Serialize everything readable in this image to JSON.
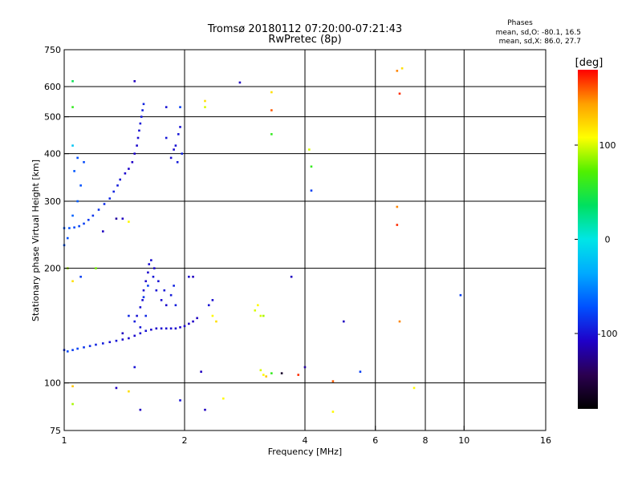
{
  "chart_data": {
    "type": "scatter",
    "title": "Tromsø 20180112 07:20:00-07:21:43",
    "subtitle": "RwPretec (8p)",
    "stats": {
      "heading": "Phases",
      "line_o": "mean, sd,O: -80.1, 16.5",
      "line_x": "mean, sd,X:  86.0, 27.7"
    },
    "xlabel": "Frequency [MHz]",
    "ylabel": "Stationary phase Virtual Height [km]",
    "x_scale": "log",
    "y_scale": "log",
    "xlim": [
      1,
      16
    ],
    "ylim": [
      75,
      750
    ],
    "x_ticks": [
      1,
      2,
      4,
      6,
      8,
      10,
      16
    ],
    "y_ticks": [
      75,
      100,
      200,
      300,
      400,
      500,
      600,
      750
    ],
    "x_gridlines": [
      2,
      4,
      6,
      8,
      10
    ],
    "y_gridlines": [
      100,
      200,
      300,
      400,
      500,
      600
    ],
    "colorbar": {
      "label": "[deg]",
      "range": [
        -180,
        180
      ],
      "ticks": [
        100,
        0,
        -100
      ],
      "colormap": [
        "#000000",
        "#2b0050",
        "#1f00c8",
        "#0050ff",
        "#00aaff",
        "#00e6e6",
        "#00e060",
        "#50f000",
        "#ffff00",
        "#ffa000",
        "#ff0000"
      ]
    },
    "series": [
      {
        "trace": "lower",
        "points": [
          [
            1.0,
            122,
            -90
          ],
          [
            1.02,
            121,
            -75
          ],
          [
            1.05,
            122,
            -82
          ],
          [
            1.08,
            123,
            -78
          ],
          [
            1.12,
            124,
            -85
          ],
          [
            1.16,
            125,
            -88
          ],
          [
            1.2,
            126,
            -92
          ],
          [
            1.25,
            127,
            -95
          ],
          [
            1.3,
            128,
            -100
          ],
          [
            1.35,
            129,
            -98
          ],
          [
            1.4,
            130,
            -103
          ],
          [
            1.45,
            131,
            -105
          ],
          [
            1.5,
            133,
            -104
          ],
          [
            1.55,
            135,
            -102
          ],
          [
            1.6,
            137,
            -100
          ],
          [
            1.65,
            138,
            -104
          ],
          [
            1.7,
            139,
            -106
          ],
          [
            1.75,
            139,
            -104
          ],
          [
            1.8,
            139,
            -102
          ],
          [
            1.85,
            139,
            -103
          ],
          [
            1.9,
            139,
            -104
          ],
          [
            1.95,
            140,
            -104
          ],
          [
            2.0,
            141,
            -106
          ],
          [
            2.05,
            143,
            -106
          ],
          [
            2.1,
            145,
            -108
          ],
          [
            2.15,
            148,
            -110
          ],
          [
            1.52,
            150,
            -100
          ],
          [
            1.55,
            158,
            -100
          ],
          [
            1.57,
            165,
            -102
          ],
          [
            1.58,
            175,
            -104
          ],
          [
            1.6,
            185,
            -106
          ],
          [
            1.62,
            195,
            -104
          ],
          [
            1.63,
            205,
            -102
          ],
          [
            1.67,
            190,
            -98
          ],
          [
            1.7,
            175,
            -100
          ],
          [
            1.75,
            165,
            -102
          ],
          [
            1.8,
            160,
            -104
          ],
          [
            1.5,
            145,
            -95
          ],
          [
            1.45,
            150,
            -90
          ],
          [
            1.58,
            168,
            -85
          ],
          [
            1.62,
            180,
            -80
          ],
          [
            1.65,
            210,
            -102
          ],
          [
            1.68,
            200,
            -104
          ],
          [
            1.72,
            185,
            -100
          ],
          [
            1.78,
            175,
            -98
          ],
          [
            1.85,
            170,
            -96
          ],
          [
            1.88,
            180,
            -92
          ],
          [
            1.9,
            160,
            -94
          ],
          [
            1.55,
            140,
            -98
          ],
          [
            1.6,
            150,
            -90
          ],
          [
            2.35,
            165,
            -102
          ],
          [
            2.3,
            160,
            -100
          ],
          [
            2.05,
            190,
            -105
          ],
          [
            1.5,
            110,
            -100
          ],
          [
            1.4,
            135,
            -110
          ]
        ]
      },
      {
        "trace": "upper",
        "points": [
          [
            1.0,
            255,
            -70
          ],
          [
            1.03,
            255,
            -72
          ],
          [
            1.06,
            256,
            -75
          ],
          [
            1.09,
            258,
            -78
          ],
          [
            1.12,
            262,
            -80
          ],
          [
            1.15,
            268,
            -82
          ],
          [
            1.18,
            275,
            -84
          ],
          [
            1.22,
            285,
            -86
          ],
          [
            1.26,
            295,
            -88
          ],
          [
            1.3,
            305,
            -90
          ],
          [
            1.33,
            318,
            -92
          ],
          [
            1.36,
            330,
            -95
          ],
          [
            1.38,
            342,
            -100
          ],
          [
            1.42,
            355,
            -104
          ],
          [
            1.45,
            365,
            -106
          ],
          [
            1.48,
            380,
            -108
          ],
          [
            1.5,
            400,
            -106
          ],
          [
            1.52,
            420,
            -104
          ],
          [
            1.53,
            440,
            -102
          ],
          [
            1.54,
            460,
            -100
          ],
          [
            1.55,
            480,
            -98
          ],
          [
            1.56,
            500,
            -96
          ],
          [
            1.57,
            520,
            -94
          ],
          [
            1.58,
            540,
            -92
          ],
          [
            1.0,
            230,
            -70
          ],
          [
            1.02,
            240,
            -72
          ],
          [
            1.05,
            275,
            -65
          ],
          [
            1.08,
            300,
            -68
          ],
          [
            1.1,
            330,
            -72
          ],
          [
            1.06,
            360,
            -70
          ],
          [
            1.08,
            390,
            -74
          ],
          [
            1.12,
            380,
            -75
          ],
          [
            1.05,
            420,
            -20
          ],
          [
            1.85,
            390,
            -102
          ],
          [
            1.88,
            410,
            -104
          ],
          [
            1.9,
            420,
            -100
          ],
          [
            1.93,
            450,
            -98
          ],
          [
            1.95,
            470,
            -100
          ],
          [
            1.92,
            380,
            -96
          ],
          [
            1.97,
            400,
            -92
          ],
          [
            1.8,
            440,
            -98
          ]
        ]
      },
      {
        "trace": "scattered",
        "points": [
          [
            1.05,
            620,
            40
          ],
          [
            1.5,
            620,
            -110
          ],
          [
            2.75,
            615,
            -110
          ],
          [
            3.3,
            580,
            120
          ],
          [
            3.3,
            520,
            160
          ],
          [
            6.8,
            660,
            150
          ],
          [
            7.0,
            670,
            120
          ],
          [
            6.9,
            575,
            170
          ],
          [
            1.05,
            530,
            60
          ],
          [
            1.8,
            530,
            -100
          ],
          [
            1.95,
            530,
            -80
          ],
          [
            2.25,
            550,
            120
          ],
          [
            2.25,
            530,
            100
          ],
          [
            3.3,
            450,
            60
          ],
          [
            4.1,
            410,
            100
          ],
          [
            4.15,
            370,
            60
          ],
          [
            4.15,
            320,
            -80
          ],
          [
            6.8,
            290,
            150
          ],
          [
            6.8,
            260,
            170
          ],
          [
            1.25,
            250,
            -110
          ],
          [
            1.35,
            270,
            -120
          ],
          [
            1.4,
            270,
            -110
          ],
          [
            1.45,
            265,
            110
          ],
          [
            1.02,
            200,
            90
          ],
          [
            1.05,
            185,
            120
          ],
          [
            1.1,
            190,
            -80
          ],
          [
            1.2,
            200,
            80
          ],
          [
            2.1,
            190,
            -110
          ],
          [
            3.7,
            190,
            -110
          ],
          [
            3.0,
            155,
            100
          ],
          [
            3.05,
            160,
            110
          ],
          [
            3.1,
            150,
            100
          ],
          [
            3.15,
            150,
            90
          ],
          [
            2.35,
            150,
            110
          ],
          [
            2.4,
            145,
            120
          ],
          [
            5.0,
            145,
            -110
          ],
          [
            6.9,
            145,
            150
          ],
          [
            9.8,
            170,
            -80
          ],
          [
            3.1,
            108,
            100
          ],
          [
            3.15,
            105,
            110
          ],
          [
            3.2,
            104,
            130
          ],
          [
            3.3,
            106,
            60
          ],
          [
            3.5,
            106,
            -160
          ],
          [
            3.85,
            105,
            170
          ],
          [
            4.0,
            110,
            -120
          ],
          [
            4.7,
            101,
            160
          ],
          [
            5.5,
            107,
            -80
          ],
          [
            2.2,
            107,
            -110
          ],
          [
            1.05,
            98,
            130
          ],
          [
            1.35,
            97,
            -110
          ],
          [
            1.45,
            95,
            120
          ],
          [
            1.55,
            85,
            -110
          ],
          [
            1.05,
            88,
            90
          ],
          [
            1.95,
            90,
            -100
          ],
          [
            2.25,
            85,
            -110
          ],
          [
            2.5,
            91,
            110
          ],
          [
            4.7,
            84,
            110
          ],
          [
            7.5,
            97,
            110
          ]
        ]
      }
    ]
  }
}
